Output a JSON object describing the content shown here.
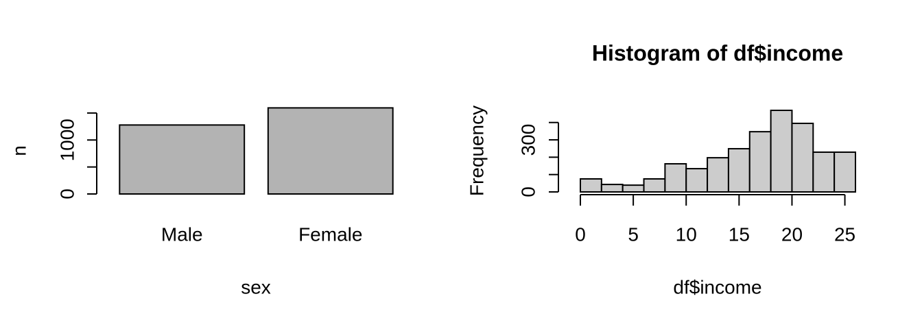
{
  "chart_data": [
    {
      "type": "bar",
      "xlabel": "sex",
      "ylabel": "n",
      "categories": [
        "Male",
        "Female"
      ],
      "values": [
        1278,
        1595
      ],
      "color": "#b3b3b3",
      "ylim": [
        0,
        1600
      ],
      "yticks": [
        0,
        1000
      ],
      "minor_yticks": [
        500,
        1500
      ]
    },
    {
      "type": "histogram",
      "title": "Histogram of df$income",
      "xlabel": "df$income",
      "ylabel": "Frequency",
      "bins": [
        0,
        2,
        4,
        6,
        8,
        10,
        12,
        14,
        16,
        18,
        20,
        22,
        24,
        26
      ],
      "values": [
        75,
        43,
        39,
        75,
        162,
        134,
        197,
        249,
        347,
        470,
        395,
        229,
        229
      ],
      "color": "#cccccc",
      "xlim": [
        0,
        26
      ],
      "xticks": [
        0,
        5,
        10,
        15,
        20,
        25
      ],
      "ylim": [
        0,
        470
      ],
      "yticks": [
        0,
        300
      ],
      "minor_yticks": [
        100,
        200,
        400
      ]
    }
  ]
}
